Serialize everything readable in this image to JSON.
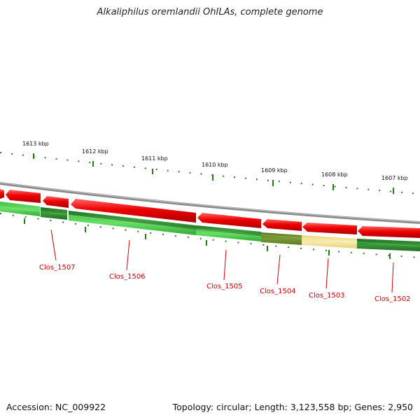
{
  "title": "Alkaliphilus oremlandii OhILAs, complete genome",
  "footer": {
    "accession": "Accession: NC_009922",
    "summary": "Topology: circular; Length: 3,123,558 bp; Genes: 2,950"
  },
  "scale_labels": [
    "1613 kbp",
    "1612 kbp",
    "1611 kbp",
    "1610 kbp",
    "1609 kbp",
    "1608 kbp",
    "1607 kbp"
  ],
  "gene_labels": [
    "Clos_1507",
    "Clos_1506",
    "Clos_1505",
    "Clos_1504",
    "Clos_1503",
    "Clos_1502"
  ],
  "colors": {
    "forward_cds": "#ee0000",
    "expression_green": "#2e8b2e",
    "expression_light_green": "#44cc44",
    "expression_olive": "#6b8a2a",
    "expression_yellow": "#f3e59a",
    "backbone": "#888888",
    "tick": "#2a7a1a",
    "label_red": "#cc0000"
  }
}
